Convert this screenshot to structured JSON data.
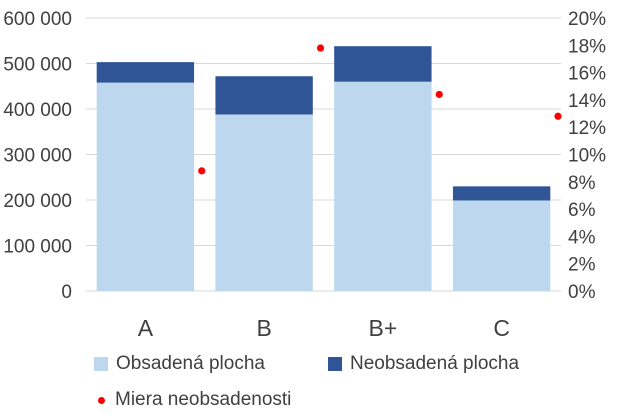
{
  "chart_data": {
    "type": "bar",
    "stacked": true,
    "categories": [
      "A",
      "B",
      "B+",
      "C"
    ],
    "series": [
      {
        "name": "Obsadená plocha",
        "type": "bar",
        "axis": "left",
        "values": [
          458000,
          388000,
          460000,
          199000
        ],
        "color": "#BDD7EE"
      },
      {
        "name": "Neobsadená plocha",
        "type": "bar",
        "axis": "left",
        "values": [
          45000,
          84000,
          78000,
          31000
        ],
        "color": "#2F5597"
      },
      {
        "name": "Miera neobsadenosti",
        "type": "scatter",
        "axis": "right",
        "values": [
          0.088,
          0.178,
          0.144,
          0.128
        ],
        "color": "#FF0000"
      }
    ],
    "y_left": {
      "ylim": [
        0,
        600000
      ],
      "ticks": [
        "0",
        "100 000",
        "200 000",
        "300 000",
        "400 000",
        "500 000",
        "600 000"
      ]
    },
    "y_right": {
      "ylim": [
        0,
        0.2
      ],
      "ticks": [
        "0%",
        "2%",
        "4%",
        "6%",
        "8%",
        "10%",
        "12%",
        "14%",
        "16%",
        "18%",
        "20%"
      ]
    },
    "gridlines": true,
    "legend_position": "bottom",
    "legend": [
      "Obsadená plocha",
      "Neobsadená plocha",
      "Miera neobsadenosti"
    ]
  }
}
